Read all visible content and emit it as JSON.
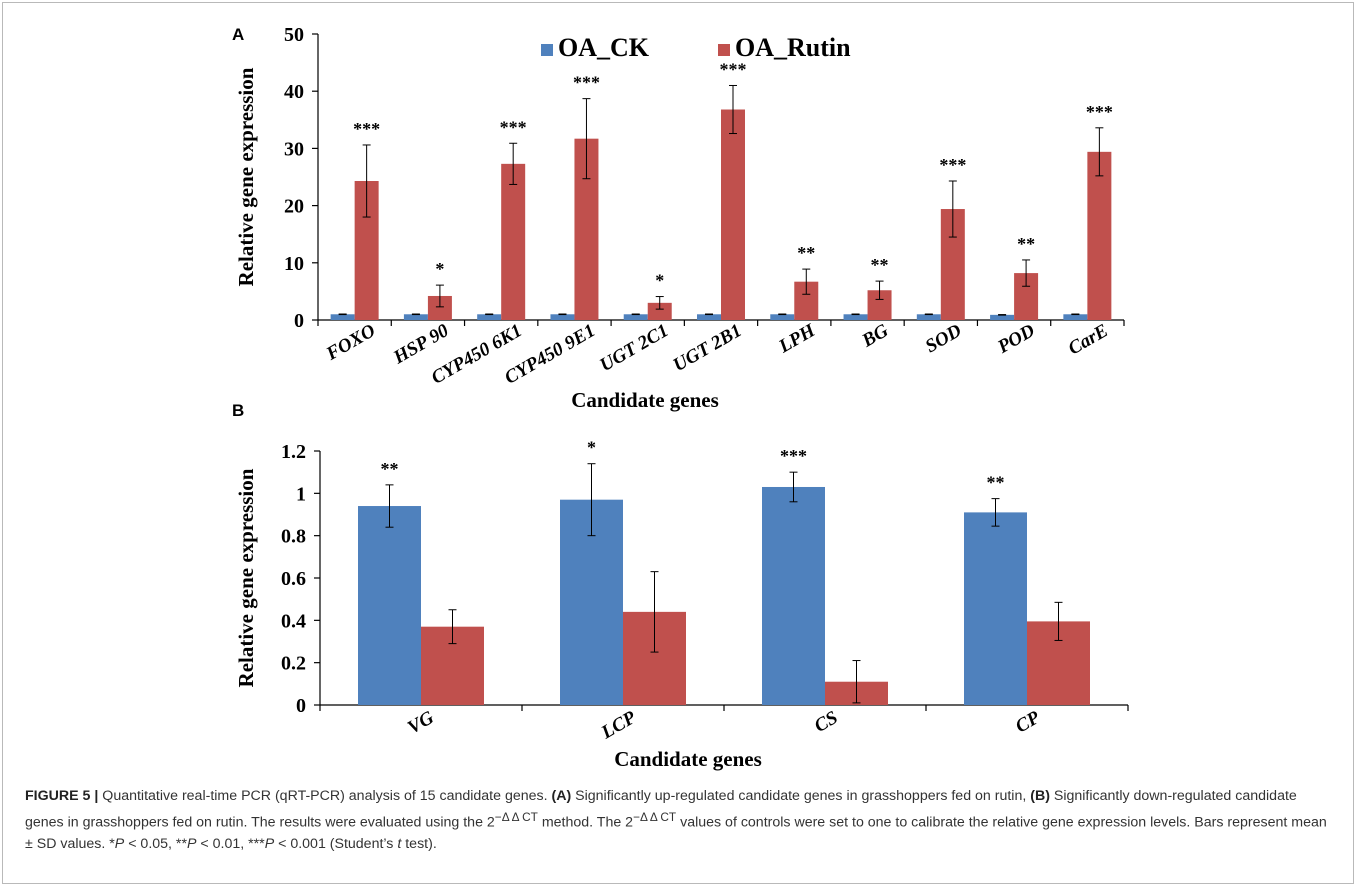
{
  "chart_data": [
    {
      "panel": "A",
      "type": "bar",
      "categories": [
        "FOXO",
        "HSP 90",
        "CYP450 6K1",
        "CYP450 9E1",
        "UGT 2C1",
        "UGT 2B1",
        "LPH",
        "BG",
        "SOD",
        "POD",
        "CarE"
      ],
      "series": [
        {
          "name": "OA_CK",
          "values": [
            1,
            1,
            1,
            1,
            1,
            1,
            1,
            1,
            1,
            0.9,
            1
          ],
          "errors": [
            0.05,
            0.05,
            0.05,
            0.05,
            0.05,
            0.05,
            0.05,
            0.05,
            0.05,
            0.05,
            0.05
          ]
        },
        {
          "name": "OA_Rutin",
          "values": [
            24.3,
            4.2,
            27.3,
            31.7,
            3.0,
            36.8,
            6.7,
            5.2,
            19.4,
            8.2,
            29.4
          ],
          "errors": [
            6.3,
            1.9,
            3.6,
            7.0,
            1.1,
            4.2,
            2.2,
            1.6,
            4.9,
            2.3,
            4.2
          ]
        }
      ],
      "significance": [
        "***",
        "*",
        "***",
        "***",
        "*",
        "***",
        "**",
        "**",
        "***",
        "**",
        "***"
      ],
      "xlabel": "Candidate genes",
      "ylabel": "Relative gene expression",
      "ylim": [
        0,
        50
      ],
      "yticks": [
        "0",
        "10",
        "20",
        "30",
        "40",
        "50"
      ],
      "legend": "top-center"
    },
    {
      "panel": "B",
      "type": "bar",
      "categories": [
        "VG",
        "LCP",
        "CS",
        "CP"
      ],
      "series": [
        {
          "name": "OA_CK",
          "values": [
            0.94,
            0.97,
            1.03,
            0.91
          ],
          "errors": [
            0.1,
            0.17,
            0.07,
            0.065
          ]
        },
        {
          "name": "OA_Rutin",
          "values": [
            0.37,
            0.44,
            0.11,
            0.395
          ],
          "errors": [
            0.08,
            0.19,
            0.1,
            0.09
          ]
        }
      ],
      "significance": [
        "**",
        "*",
        "***",
        "**"
      ],
      "xlabel": "Candidate genes",
      "ylabel": "Relative gene expression",
      "ylim": [
        0,
        1.2
      ],
      "yticks": [
        "0",
        "0.2",
        "0.4",
        "0.6",
        "0.8",
        "1",
        "1.2"
      ]
    }
  ],
  "colors": {
    "ck": "#4f81bd",
    "rutin": "#c0504d"
  },
  "caption": {
    "label": "FIGURE 5 |",
    "text_1": " Quantitative real-time PCR (qRT-PCR) analysis of 15 candidate genes. ",
    "a_label": "(A)",
    "text_2": " Significantly up-regulated candidate genes in grasshoppers fed on rutin, ",
    "b_label": "(B)",
    "text_3": " Significantly down-regulated candidate genes in grasshoppers fed on rutin. The results were evaluated using the 2",
    "sup_1": "−Δ Δ CT",
    "text_4": " method. The 2",
    "sup_2": "−Δ Δ CT",
    "text_5": " values of controls were set to one to calibrate the relative gene expression levels. Bars represent mean ± SD values. *",
    "p1": "P",
    "text_6": " < 0.05, **",
    "p2": "P",
    "text_7": " < 0.01, ***",
    "p3": "P",
    "text_8": " < 0.001 (Student’s ",
    "t": "t",
    "text_9": " test)."
  }
}
